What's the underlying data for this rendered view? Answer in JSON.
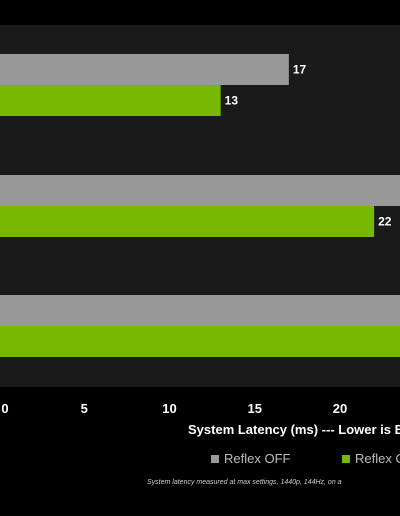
{
  "colors": {
    "background": "#000000",
    "plot_background": "#1a1a1a",
    "reflex_off": "#999999",
    "reflex_on": "#76b900"
  },
  "chart_data": {
    "type": "bar",
    "orientation": "horizontal",
    "groups": [
      "",
      "",
      ""
    ],
    "series": [
      {
        "name": "Reflex OFF",
        "values": [
          17,
          null,
          null
        ]
      },
      {
        "name": "Reflex ON",
        "values": [
          13,
          22,
          null
        ]
      }
    ],
    "value_labels": {
      "Reflex OFF": [
        "17",
        "",
        ""
      ],
      "Reflex ON": [
        "13",
        "22",
        ""
      ]
    },
    "xticks": [
      "0",
      "5",
      "10",
      "15",
      "20"
    ],
    "xlabel": "System Latency (ms) --- Lower is B",
    "xlim": [
      0,
      23.5
    ],
    "legend": [
      "Reflex OFF",
      "Reflex O"
    ],
    "legend_position": "bottom-right",
    "footnote": "System latency measured at max settings, 1440p, 144Hz, on a"
  }
}
